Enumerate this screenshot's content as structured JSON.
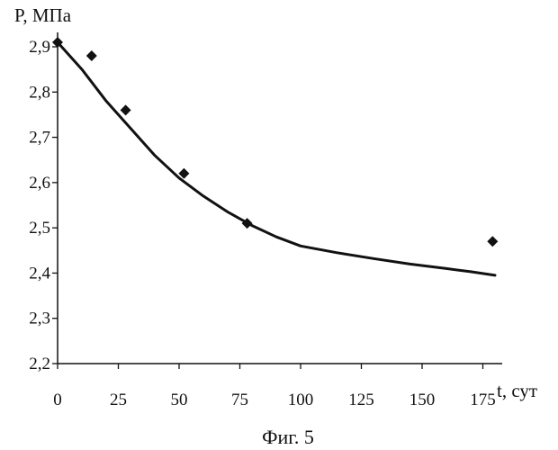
{
  "chart_data": {
    "type": "scatter",
    "caption": "Фиг. 5",
    "xlabel": "t, сут",
    "ylabel": "P, МПа",
    "xlim": [
      0,
      180
    ],
    "ylim": [
      2.2,
      2.9
    ],
    "x_ticks": [
      0,
      25,
      50,
      75,
      100,
      125,
      150,
      175
    ],
    "y_ticks": [
      2.2,
      2.3,
      2.4,
      2.5,
      2.6,
      2.7,
      2.8,
      2.9
    ],
    "x_tick_labels": [
      "0",
      "25",
      "50",
      "75",
      "100",
      "125",
      "150",
      "175"
    ],
    "y_tick_labels": [
      "2,2",
      "2,3",
      "2,4",
      "2,5",
      "2,6",
      "2,7",
      "2,8",
      "2,9"
    ],
    "grid": false,
    "legend": "none",
    "marker": "diamond",
    "series": [
      {
        "kind": "points",
        "x": [
          0,
          14,
          28,
          52,
          78,
          179
        ],
        "y": [
          2.91,
          2.88,
          2.76,
          2.62,
          2.51,
          2.47
        ]
      },
      {
        "kind": "line",
        "x": [
          0,
          10,
          20,
          30,
          40,
          50,
          60,
          70,
          80,
          90,
          100,
          115,
          130,
          145,
          160,
          170,
          180
        ],
        "y": [
          2.91,
          2.85,
          2.78,
          2.72,
          2.66,
          2.61,
          2.57,
          2.535,
          2.505,
          2.48,
          2.46,
          2.445,
          2.432,
          2.42,
          2.41,
          2.403,
          2.395
        ]
      }
    ],
    "colors": {
      "ink": "#111111"
    }
  }
}
